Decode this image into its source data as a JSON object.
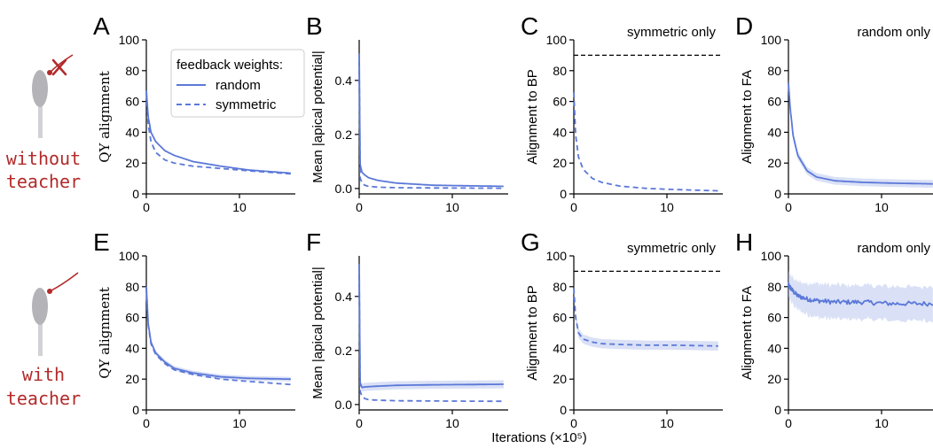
{
  "figure": {
    "shared_xlabel": "Iterations (×10⁵)",
    "rows": [
      {
        "label_line1": "without",
        "label_line2": "teacher",
        "has_teacher": false
      },
      {
        "label_line1": "with",
        "label_line2": "teacher",
        "has_teacher": true
      }
    ],
    "legend": {
      "title": "feedback weights:",
      "entries": [
        {
          "label": "random",
          "dash": "solid"
        },
        {
          "label": "symmetric",
          "dash": "dashed"
        }
      ]
    },
    "colors": {
      "series": "#5b78d8",
      "band": "#bcc8ef",
      "teacher": "#b22a2a",
      "neuron": "#b4b4b8",
      "reference": "#000000"
    }
  },
  "chart_data": [
    {
      "panel": "A",
      "type": "line",
      "ylabel": "QY alignment",
      "xlim": [
        0,
        16
      ],
      "ylim": [
        0,
        100
      ],
      "xticks": [
        0,
        10
      ],
      "yticks": [
        0,
        20,
        40,
        60,
        80,
        100
      ],
      "series": [
        {
          "name": "random",
          "dash": "solid",
          "x": [
            0,
            0.2,
            0.5,
            1,
            2,
            3,
            5,
            8,
            11,
            15.5
          ],
          "y": [
            67,
            50,
            40,
            34,
            28,
            25,
            21,
            18,
            15.5,
            13.5
          ]
        },
        {
          "name": "symmetric",
          "dash": "dashed",
          "x": [
            0,
            0.2,
            0.5,
            1,
            2,
            3,
            5,
            8,
            11,
            15.5
          ],
          "y": [
            66,
            45,
            34,
            27,
            22,
            20,
            18,
            16.5,
            15,
            13
          ]
        }
      ]
    },
    {
      "panel": "B",
      "type": "line",
      "ylabel": "Mean |apical potential|",
      "xlim": [
        0,
        16
      ],
      "ylim": [
        -0.02,
        0.55
      ],
      "xticks": [
        0,
        10
      ],
      "yticks": [
        0.0,
        0.2,
        0.4
      ],
      "series": [
        {
          "name": "random",
          "dash": "solid",
          "x": [
            0,
            0.1,
            0.3,
            0.6,
            1,
            2,
            4,
            8,
            15.5
          ],
          "y": [
            0.5,
            0.09,
            0.06,
            0.05,
            0.04,
            0.03,
            0.02,
            0.012,
            0.008
          ]
        },
        {
          "name": "symmetric",
          "dash": "dashed",
          "x": [
            0,
            0.1,
            0.3,
            0.6,
            1,
            2,
            4,
            8,
            15.5
          ],
          "y": [
            0.47,
            0.04,
            0.02,
            0.012,
            0.008,
            0.005,
            0.003,
            0.002,
            0.001
          ]
        }
      ]
    },
    {
      "panel": "C",
      "type": "line",
      "title": "symmetric only",
      "ylabel": "Alignment to BP",
      "xlim": [
        0,
        16
      ],
      "ylim": [
        0,
        100
      ],
      "xticks": [
        0,
        10
      ],
      "yticks": [
        0,
        20,
        40,
        60,
        80,
        100
      ],
      "reference_line": 90,
      "series": [
        {
          "name": "symmetric",
          "dash": "dashed",
          "x": [
            0,
            0.2,
            0.5,
            1,
            2,
            3,
            5,
            8,
            11,
            15.5
          ],
          "y": [
            66,
            38,
            24,
            16,
            10,
            7.5,
            5,
            3.5,
            2.8,
            2
          ]
        }
      ]
    },
    {
      "panel": "D",
      "type": "line",
      "title": "random only",
      "ylabel": "Alignment to FA",
      "xlim": [
        0,
        16
      ],
      "ylim": [
        0,
        100
      ],
      "xticks": [
        0,
        10
      ],
      "yticks": [
        0,
        20,
        40,
        60,
        80,
        100
      ],
      "series": [
        {
          "name": "random",
          "dash": "solid",
          "x": [
            0,
            0.2,
            0.5,
            1,
            2,
            3,
            5,
            8,
            11,
            15.5
          ],
          "y": [
            72,
            55,
            38,
            25,
            15,
            11,
            8.5,
            7.5,
            7,
            6.5
          ],
          "band": 2.5
        }
      ]
    },
    {
      "panel": "E",
      "type": "line",
      "ylabel": "QY alignment",
      "xlim": [
        0,
        16
      ],
      "ylim": [
        0,
        100
      ],
      "xticks": [
        0,
        10
      ],
      "yticks": [
        0,
        20,
        40,
        60,
        80,
        100
      ],
      "series": [
        {
          "name": "random",
          "dash": "solid",
          "x": [
            0,
            0.2,
            0.5,
            1,
            2,
            3,
            5,
            8,
            11,
            15.5
          ],
          "y": [
            80,
            56,
            44,
            37,
            31,
            27,
            24,
            21.5,
            20.5,
            20
          ],
          "band": 1.5
        },
        {
          "name": "symmetric",
          "dash": "dashed",
          "x": [
            0,
            0.2,
            0.5,
            1,
            2,
            3,
            5,
            8,
            11,
            15.5
          ],
          "y": [
            79,
            55,
            43,
            36,
            30,
            26,
            23,
            20,
            18.5,
            16.5
          ]
        }
      ]
    },
    {
      "panel": "F",
      "type": "line",
      "ylabel": "Mean |apical potential|",
      "xlim": [
        0,
        16
      ],
      "ylim": [
        -0.02,
        0.55
      ],
      "xticks": [
        0,
        10
      ],
      "yticks": [
        0.0,
        0.2,
        0.4
      ],
      "series": [
        {
          "name": "random",
          "dash": "solid",
          "x": [
            0,
            0.1,
            0.3,
            0.6,
            1,
            2,
            4,
            8,
            12,
            15.5
          ],
          "y": [
            0.52,
            0.08,
            0.063,
            0.065,
            0.066,
            0.068,
            0.071,
            0.073,
            0.074,
            0.075
          ],
          "band": 0.015
        },
        {
          "name": "symmetric",
          "dash": "dashed",
          "x": [
            0,
            0.1,
            0.3,
            0.6,
            1,
            2,
            4,
            8,
            15.5
          ],
          "y": [
            0.48,
            0.05,
            0.03,
            0.022,
            0.018,
            0.016,
            0.014,
            0.013,
            0.012
          ]
        }
      ]
    },
    {
      "panel": "G",
      "type": "line",
      "title": "symmetric only",
      "ylabel": "Alignment to BP",
      "xlim": [
        0,
        16
      ],
      "ylim": [
        0,
        100
      ],
      "xticks": [
        0,
        10
      ],
      "yticks": [
        0,
        20,
        40,
        60,
        80,
        100
      ],
      "reference_line": 90,
      "series": [
        {
          "name": "symmetric",
          "dash": "dashed",
          "x": [
            0,
            0.2,
            0.5,
            1,
            2,
            3,
            5,
            8,
            11,
            15.5
          ],
          "y": [
            79,
            60,
            50,
            46,
            44,
            43,
            42.5,
            42,
            42,
            41.5
          ],
          "band": 3
        }
      ]
    },
    {
      "panel": "H",
      "type": "line",
      "title": "random only",
      "ylabel": "Alignment to FA",
      "xlim": [
        0,
        16
      ],
      "ylim": [
        0,
        100
      ],
      "xticks": [
        0,
        10
      ],
      "yticks": [
        0,
        20,
        40,
        60,
        80,
        100
      ],
      "series": [
        {
          "name": "random",
          "dash": "solid",
          "x": [
            0,
            0.5,
            1,
            2,
            3,
            5,
            8,
            11,
            15.5
          ],
          "y": [
            81,
            77,
            74,
            72,
            71,
            70,
            70,
            69,
            69
          ],
          "band": 11,
          "noise": 1.5
        }
      ]
    }
  ]
}
